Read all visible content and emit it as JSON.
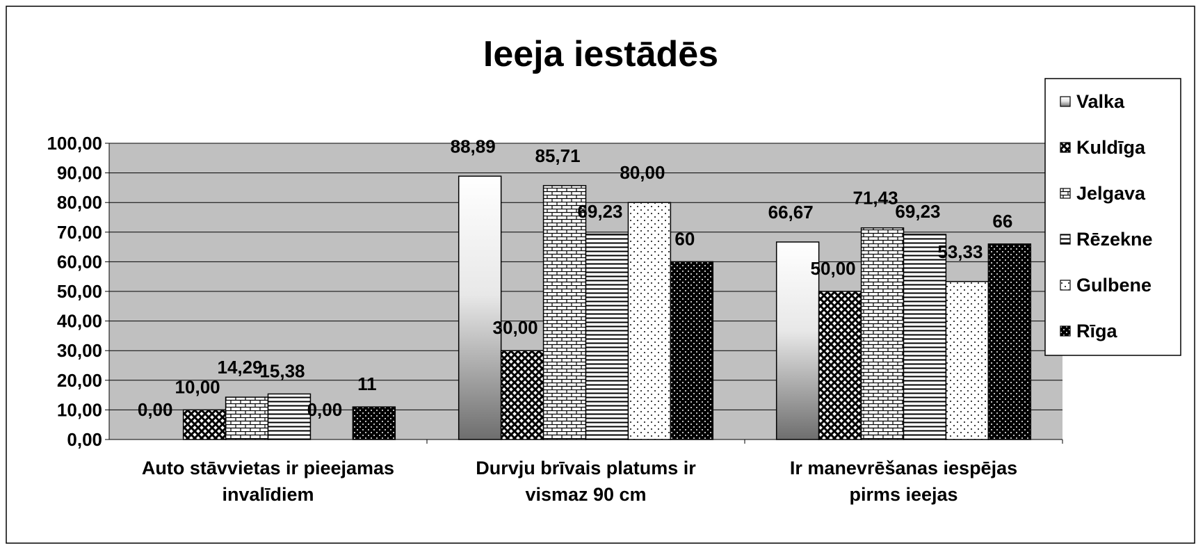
{
  "chart_data": {
    "type": "bar",
    "title": "Ieeja iestādēs",
    "categories": [
      "Auto stāvvietas ir pieejamas invalīdiem",
      "Durvju brīvais platums ir vismaz 90 cm",
      "Ir manevrēšanas iespējas pirms ieejas"
    ],
    "series": [
      {
        "name": "Valka",
        "color": "#6e6e6e",
        "values": [
          0,
          88.89,
          66.67
        ],
        "value_labels": [
          "0,00",
          "88,89",
          "66,67"
        ]
      },
      {
        "name": "Kuldīga",
        "color": "#000000",
        "values": [
          10,
          30,
          50
        ],
        "value_labels": [
          "10,00",
          "30,00",
          "50,00"
        ]
      },
      {
        "name": "Jelgava",
        "color": "#000000",
        "values": [
          14.29,
          85.71,
          71.43
        ],
        "value_labels": [
          "14,29",
          "85,71",
          "71,43"
        ]
      },
      {
        "name": "Rēzekne",
        "color": "#000000",
        "values": [
          15.38,
          69.23,
          69.23
        ],
        "value_labels": [
          "15,38",
          "69,23",
          "69,23"
        ]
      },
      {
        "name": "Gulbene",
        "color": "#000000",
        "values": [
          0,
          80,
          53.33
        ],
        "value_labels": [
          "0,00",
          "80,00",
          "53,33"
        ]
      },
      {
        "name": "Rīga",
        "color": "#000000",
        "values": [
          11,
          60,
          66
        ]
      }
    ],
    "ylim": [
      0,
      100
    ],
    "yticks": [
      {
        "value": 0,
        "label": "0,00"
      },
      {
        "value": 10,
        "label": "10,00"
      },
      {
        "value": 20,
        "label": "20,00"
      },
      {
        "value": 30,
        "label": "30,00"
      },
      {
        "value": 40,
        "label": "40,00"
      },
      {
        "value": 50,
        "label": "50,00"
      },
      {
        "value": 60,
        "label": "60,00"
      },
      {
        "value": 70,
        "label": "70,00"
      },
      {
        "value": 80,
        "label": "80,00"
      },
      {
        "value": 90,
        "label": "90,00"
      },
      {
        "value": 100,
        "label": "100,00"
      }
    ],
    "grid": true,
    "legend": "right"
  }
}
